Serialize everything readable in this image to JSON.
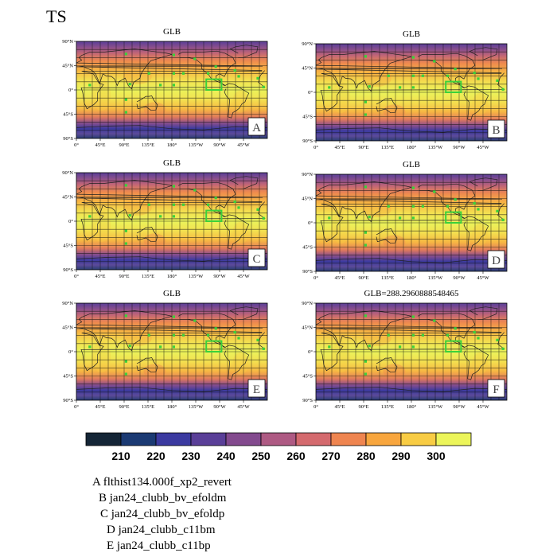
{
  "title": "TS",
  "panels": [
    {
      "id": "A",
      "title": "GLB"
    },
    {
      "id": "B",
      "title": "GLB"
    },
    {
      "id": "C",
      "title": "GLB"
    },
    {
      "id": "D",
      "title": "GLB"
    },
    {
      "id": "E",
      "title": "GLB"
    },
    {
      "id": "F",
      "title": "GLB=288.2960888548465"
    }
  ],
  "lat_ticks": [
    "90°N",
    "45°N",
    "0°",
    "45°S",
    "90°S"
  ],
  "lon_ticks": [
    "0°",
    "45°E",
    "90°E",
    "135°E",
    "180°",
    "135°W",
    "90°W",
    "45°W"
  ],
  "colorbar": {
    "labels": [
      "210",
      "220",
      "230",
      "240",
      "250",
      "260",
      "270",
      "280",
      "290",
      "300"
    ],
    "colors": [
      "#142536",
      "#1b3a73",
      "#3b3aa0",
      "#5a3f98",
      "#834a8e",
      "#ae5a83",
      "#d46a6e",
      "#ef8550",
      "#f8a63e",
      "#f8cc44",
      "#ecf55a"
    ]
  },
  "legend": [
    "A  flthist134.000f_xp2_revert",
    "B  jan24_clubb_bv_efoldm",
    "C  jan24_clubb_bv_efoldp",
    "D  jan24_clubb_c11bm",
    "E  jan24_clubb_c11bp"
  ]
}
